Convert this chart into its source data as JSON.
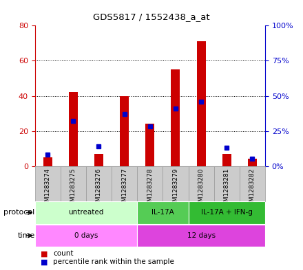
{
  "title": "GDS5817 / 1552438_a_at",
  "samples": [
    "GSM1283274",
    "GSM1283275",
    "GSM1283276",
    "GSM1283277",
    "GSM1283278",
    "GSM1283279",
    "GSM1283280",
    "GSM1283281",
    "GSM1283282"
  ],
  "counts": [
    5,
    42,
    7,
    40,
    24,
    55,
    71,
    7,
    4
  ],
  "percentiles": [
    8,
    32,
    14,
    37,
    28,
    41,
    46,
    13,
    5
  ],
  "ylim_left": [
    0,
    80
  ],
  "ylim_right": [
    0,
    100
  ],
  "yticks_left": [
    0,
    20,
    40,
    60,
    80
  ],
  "yticks_right": [
    0,
    25,
    50,
    75,
    100
  ],
  "bar_color": "#cc0000",
  "square_color": "#0000cc",
  "protocol_groups": [
    {
      "label": "untreated",
      "start": 0,
      "end": 4,
      "color": "#ccffcc"
    },
    {
      "label": "IL-17A",
      "start": 4,
      "end": 6,
      "color": "#55cc55"
    },
    {
      "label": "IL-17A + IFN-g",
      "start": 6,
      "end": 9,
      "color": "#33bb33"
    }
  ],
  "time_groups": [
    {
      "label": "0 days",
      "start": 0,
      "end": 4,
      "color": "#ff88ff"
    },
    {
      "label": "12 days",
      "start": 4,
      "end": 9,
      "color": "#dd44dd"
    }
  ],
  "sample_box_color": "#cccccc",
  "sample_box_edge": "#999999"
}
